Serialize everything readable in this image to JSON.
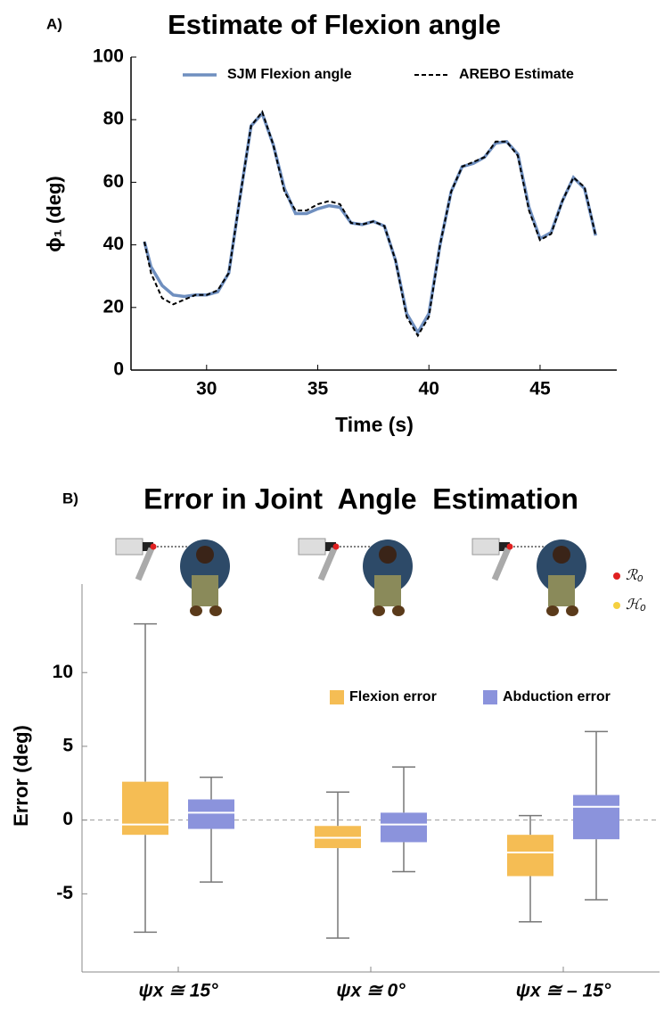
{
  "chart_data": [
    {
      "type": "line",
      "panel_label": "A)",
      "title": "Estimate of Flexion angle",
      "xlabel": "Time (s)",
      "ylabel": "ϕ₁ (deg)",
      "x": [
        27.2,
        27.5,
        28,
        28.5,
        29,
        29.5,
        30,
        30.5,
        31,
        31.5,
        32,
        32.5,
        33,
        33.5,
        34,
        34.5,
        35,
        35.5,
        36,
        36.5,
        37,
        37.5,
        38,
        38.5,
        39,
        39.5,
        40,
        40.5,
        41,
        41.5,
        42,
        42.5,
        43,
        43.5,
        44,
        44.5,
        45,
        45.5,
        46,
        46.5,
        47,
        47.5
      ],
      "series": [
        {
          "name": "SJM Flexion angle",
          "color": "#6f8fbf",
          "dash": false,
          "values": [
            41,
            33,
            27,
            24,
            23.5,
            24,
            24,
            25,
            31,
            55,
            78,
            82,
            72,
            58,
            50,
            50,
            51.5,
            52.5,
            52,
            47,
            46.5,
            47.5,
            46,
            35,
            18,
            12,
            18,
            40,
            57,
            65,
            66,
            68,
            72.5,
            73,
            69,
            52,
            42,
            44,
            54,
            61.5,
            58,
            43
          ]
        },
        {
          "name": "AREBO Estimate",
          "color": "#000000",
          "dash": true,
          "values": [
            41,
            31,
            23,
            21,
            22.5,
            24,
            24,
            25.5,
            31,
            55,
            78,
            82.5,
            72,
            57,
            51,
            51,
            53,
            54,
            53,
            47,
            46.5,
            47.5,
            46,
            35,
            17,
            11,
            17,
            40,
            57,
            65,
            66.5,
            68,
            73,
            73,
            68.5,
            51,
            41.5,
            43.5,
            54,
            61.5,
            58.5,
            43
          ]
        }
      ],
      "xlim": [
        26.6,
        48.45
      ],
      "xticks": [
        30,
        35,
        40,
        45
      ],
      "ylim": [
        0,
        100
      ],
      "yticks": [
        0,
        20,
        40,
        60,
        80,
        100
      ],
      "legend": "top"
    },
    {
      "type": "box",
      "panel_label": "B)",
      "title": "Error in Joint  Angle  Estimation",
      "ylabel": "Error (deg)",
      "categories": [
        "ψx ≅ 15°",
        "ψx ≅ 0°",
        "ψx ≅ – 15°"
      ],
      "annotations": [
        "ℛ₀",
        "ℋ₀"
      ],
      "series": [
        {
          "name": "Flexion error",
          "color": "#f5bd54",
          "min": [
            -7.6,
            -8.0,
            -6.9
          ],
          "q1": [
            -1.0,
            -1.9,
            -3.8
          ],
          "median": [
            -0.3,
            -1.2,
            -2.2
          ],
          "q3": [
            2.6,
            -0.4,
            -1.0
          ],
          "max": [
            13.3,
            1.9,
            0.3
          ]
        },
        {
          "name": "Abduction error",
          "color": "#8b93dc",
          "min": [
            -4.2,
            -3.5,
            -5.4
          ],
          "q1": [
            -0.6,
            -1.5,
            -1.3
          ],
          "median": [
            0.5,
            -0.3,
            0.9
          ],
          "q3": [
            1.4,
            0.5,
            1.7
          ],
          "max": [
            2.9,
            3.6,
            6.0
          ]
        }
      ],
      "ylim": [
        -10.3,
        16
      ],
      "yticks": [
        -5,
        0,
        5,
        10
      ],
      "reference_line": 0,
      "legend": "top-right"
    }
  ]
}
